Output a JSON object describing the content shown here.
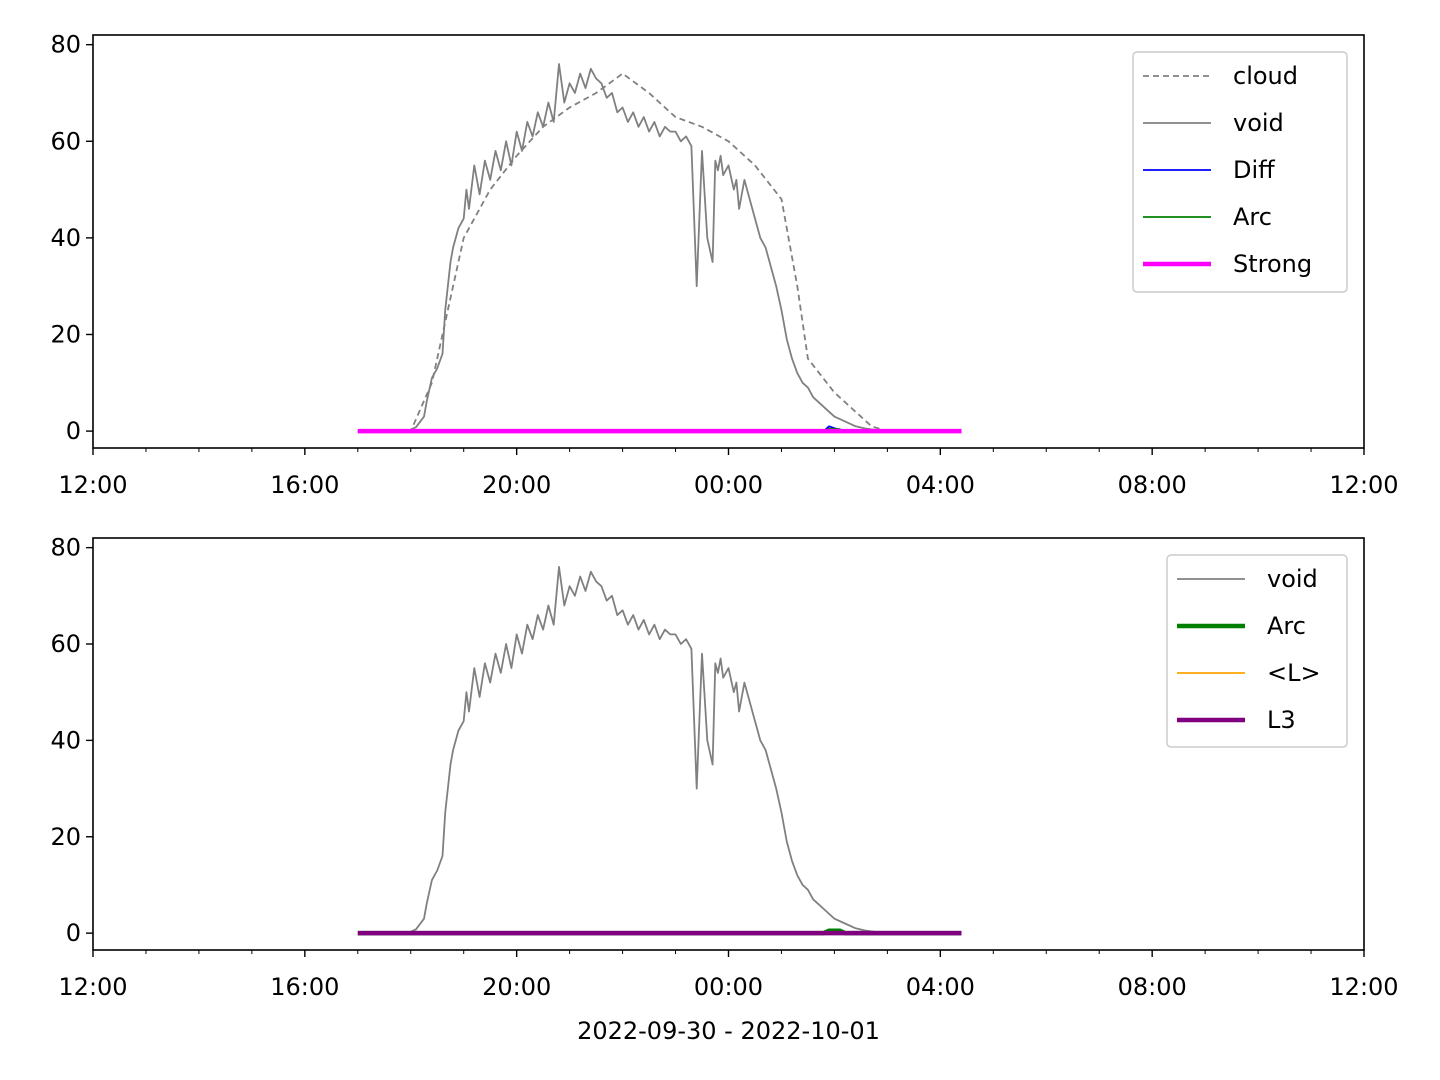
{
  "chart_data": [
    {
      "type": "line",
      "xlabel": "",
      "ylabel": "",
      "xlim": [
        "12:00",
        "12:00 (+1 day)"
      ],
      "xlim_hours": [
        12,
        36
      ],
      "ylim": [
        -3.5,
        82
      ],
      "xticks": [
        "12:00",
        "16:00",
        "20:00",
        "00:00",
        "04:00",
        "08:00",
        "12:00"
      ],
      "yticks": [
        "0",
        "20",
        "40",
        "60",
        "80"
      ],
      "legend_position": "top-right",
      "series": [
        {
          "name": "cloud",
          "color": "#808080",
          "style": "dashed",
          "x": [
            17.0,
            18.0,
            18.4,
            18.7,
            19.0,
            19.5,
            20.0,
            20.5,
            21.0,
            21.5,
            22.0,
            22.5,
            23.0,
            23.5,
            24.0,
            24.5,
            25.0,
            25.3,
            25.5,
            26.0,
            26.4,
            26.7,
            27.0,
            28.4
          ],
          "y": [
            0,
            0,
            10,
            25,
            40,
            50,
            57,
            63,
            67,
            70,
            74,
            70,
            65,
            63,
            60,
            55,
            48,
            30,
            15,
            8,
            4,
            1,
            0,
            0
          ]
        },
        {
          "name": "void",
          "color": "#808080",
          "style": "solid",
          "x": [
            18.0,
            18.1,
            18.25,
            18.3,
            18.4,
            18.5,
            18.6,
            18.65,
            18.75,
            18.8,
            18.9,
            19.0,
            19.05,
            19.1,
            19.2,
            19.3,
            19.4,
            19.5,
            19.6,
            19.7,
            19.8,
            19.9,
            20.0,
            20.1,
            20.2,
            20.3,
            20.4,
            20.5,
            20.6,
            20.7,
            20.8,
            20.9,
            21.0,
            21.1,
            21.2,
            21.3,
            21.4,
            21.5,
            21.6,
            21.7,
            21.8,
            21.9,
            22.0,
            22.1,
            22.2,
            22.3,
            22.4,
            22.5,
            22.6,
            22.7,
            22.8,
            22.9,
            23.0,
            23.1,
            23.2,
            23.3,
            23.4,
            23.5,
            23.6,
            23.7,
            23.75,
            23.8,
            23.85,
            23.9,
            24.0,
            24.1,
            24.15,
            24.2,
            24.3,
            24.4,
            24.5,
            24.6,
            24.7,
            24.8,
            24.9,
            25.0,
            25.1,
            25.2,
            25.3,
            25.4,
            25.5,
            25.6,
            25.7,
            25.8,
            25.9,
            26.0,
            26.2,
            26.4,
            26.6,
            26.8,
            27.0,
            27.3
          ],
          "y": [
            0.3,
            0.8,
            3,
            6,
            11,
            13,
            16,
            25,
            35,
            38,
            42,
            44,
            50,
            46,
            55,
            49,
            56,
            52,
            58,
            54,
            60,
            55,
            62,
            58,
            64,
            61,
            66,
            63,
            68,
            64,
            76,
            68,
            72,
            70,
            74,
            71,
            75,
            73,
            72,
            69,
            70,
            66,
            67,
            64,
            66,
            63,
            65,
            62,
            64,
            61,
            63,
            62,
            62,
            60,
            61,
            59,
            30,
            58,
            40,
            35,
            56,
            54,
            57,
            53,
            55,
            50,
            52,
            46,
            52,
            48,
            44,
            40,
            38,
            34,
            30,
            25,
            19,
            15,
            12,
            10,
            9,
            7,
            6,
            5,
            4,
            3,
            2,
            1,
            0.5,
            0.2,
            0.1,
            0.1
          ]
        },
        {
          "name": "Diff",
          "color": "#0000ff",
          "style": "solid",
          "x": [
            17.0,
            25.8,
            25.9,
            26.0,
            26.2,
            28.4
          ],
          "y": [
            0,
            0,
            1,
            0.6,
            0,
            0
          ]
        },
        {
          "name": "Arc",
          "color": "#008000",
          "style": "solid",
          "x": [
            17.0,
            25.8,
            25.9,
            26.1,
            26.2,
            28.4
          ],
          "y": [
            0,
            0,
            0.5,
            0.4,
            0,
            0
          ]
        },
        {
          "name": "Strong",
          "color": "#ff00ff",
          "style": "thick",
          "x": [
            17.0,
            28.4
          ],
          "y": [
            0,
            0
          ]
        }
      ]
    },
    {
      "type": "line",
      "xlabel": "2022-09-30 - 2022-10-01",
      "ylabel": "",
      "xlim": [
        "12:00",
        "12:00 (+1 day)"
      ],
      "xlim_hours": [
        12,
        36
      ],
      "ylim": [
        -3.5,
        82
      ],
      "xticks": [
        "12:00",
        "16:00",
        "20:00",
        "00:00",
        "04:00",
        "08:00",
        "12:00"
      ],
      "yticks": [
        "0",
        "20",
        "40",
        "60",
        "80"
      ],
      "legend_position": "top-right",
      "series": [
        {
          "name": "void",
          "color": "#808080",
          "style": "solid",
          "x": [
            18.0,
            18.1,
            18.25,
            18.3,
            18.4,
            18.5,
            18.6,
            18.65,
            18.75,
            18.8,
            18.9,
            19.0,
            19.05,
            19.1,
            19.2,
            19.3,
            19.4,
            19.5,
            19.6,
            19.7,
            19.8,
            19.9,
            20.0,
            20.1,
            20.2,
            20.3,
            20.4,
            20.5,
            20.6,
            20.7,
            20.8,
            20.9,
            21.0,
            21.1,
            21.2,
            21.3,
            21.4,
            21.5,
            21.6,
            21.7,
            21.8,
            21.9,
            22.0,
            22.1,
            22.2,
            22.3,
            22.4,
            22.5,
            22.6,
            22.7,
            22.8,
            22.9,
            23.0,
            23.1,
            23.2,
            23.3,
            23.4,
            23.5,
            23.6,
            23.7,
            23.75,
            23.8,
            23.85,
            23.9,
            24.0,
            24.1,
            24.15,
            24.2,
            24.3,
            24.4,
            24.5,
            24.6,
            24.7,
            24.8,
            24.9,
            25.0,
            25.1,
            25.2,
            25.3,
            25.4,
            25.5,
            25.6,
            25.7,
            25.8,
            25.9,
            26.0,
            26.2,
            26.4,
            26.6,
            26.8,
            27.0,
            27.3
          ],
          "y": [
            0.3,
            0.8,
            3,
            6,
            11,
            13,
            16,
            25,
            35,
            38,
            42,
            44,
            50,
            46,
            55,
            49,
            56,
            52,
            58,
            54,
            60,
            55,
            62,
            58,
            64,
            61,
            66,
            63,
            68,
            64,
            76,
            68,
            72,
            70,
            74,
            71,
            75,
            73,
            72,
            69,
            70,
            66,
            67,
            64,
            66,
            63,
            65,
            62,
            64,
            61,
            63,
            62,
            62,
            60,
            61,
            59,
            30,
            58,
            40,
            35,
            56,
            54,
            57,
            53,
            55,
            50,
            52,
            46,
            52,
            48,
            44,
            40,
            38,
            34,
            30,
            25,
            19,
            15,
            12,
            10,
            9,
            7,
            6,
            5,
            4,
            3,
            2,
            1,
            0.5,
            0.2,
            0.1,
            0.1
          ]
        },
        {
          "name": "Arc",
          "color": "#008000",
          "style": "thick",
          "x": [
            17.0,
            25.8,
            25.9,
            26.1,
            26.2,
            28.4
          ],
          "y": [
            0,
            0,
            0.5,
            0.5,
            0,
            0
          ]
        },
        {
          "name": "<L>",
          "color": "#ffa500",
          "style": "solid",
          "x": [
            17.0,
            28.4
          ],
          "y": [
            0,
            0
          ]
        },
        {
          "name": "L3",
          "color": "#800080",
          "style": "thick",
          "x": [
            17.0,
            28.4
          ],
          "y": [
            0,
            0
          ]
        }
      ]
    }
  ]
}
